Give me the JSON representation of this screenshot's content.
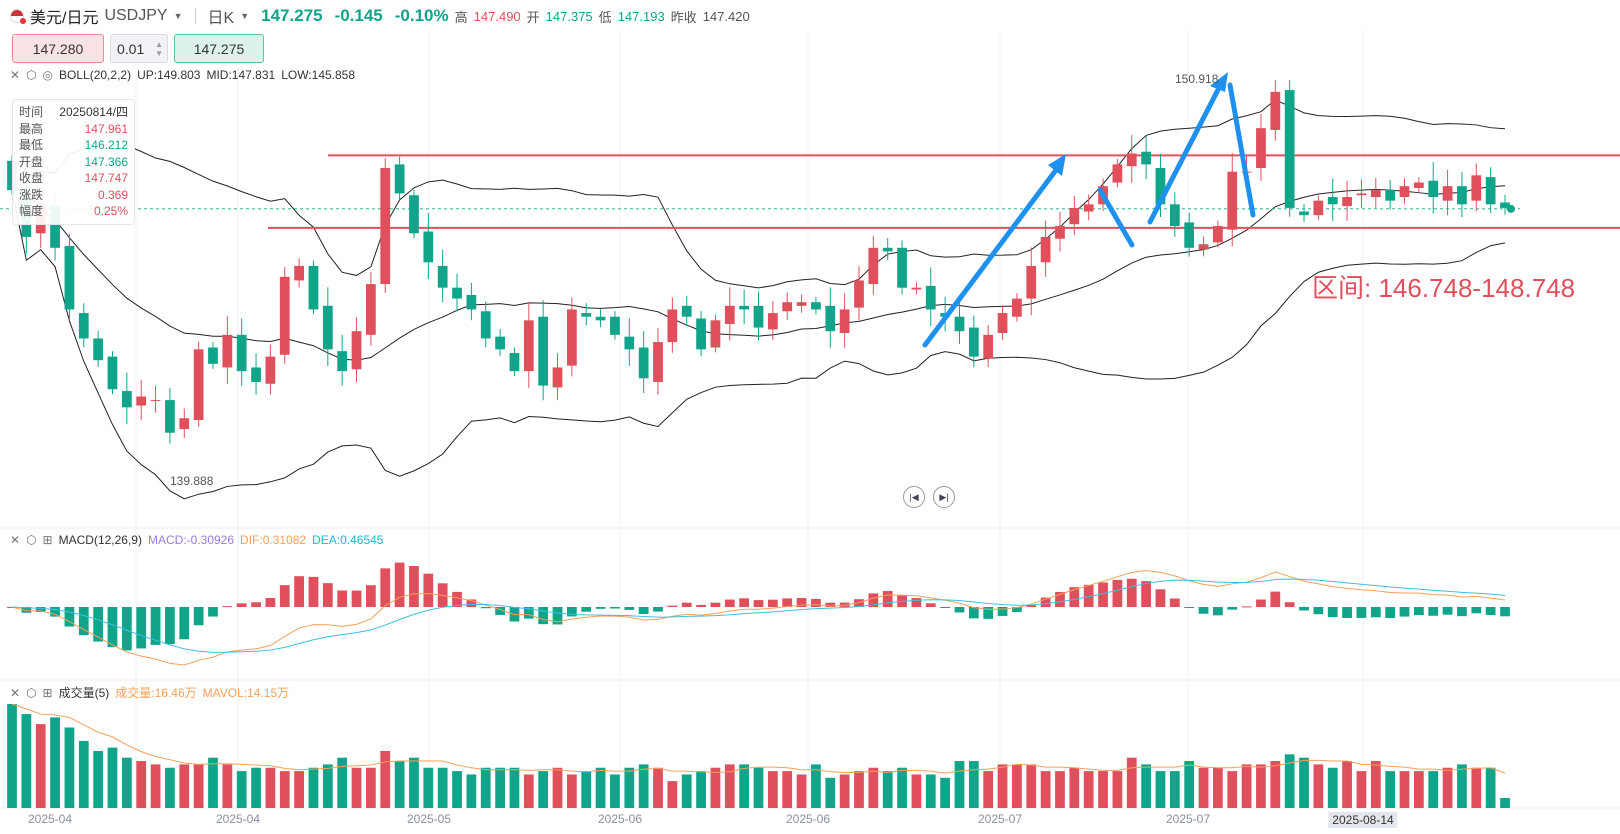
{
  "header": {
    "symbol_cn": "美元/日元",
    "symbol": "USDJPY",
    "period": "日K",
    "price": "147.275",
    "change": "-0.145",
    "change_pct": "-0.10%",
    "high_label": "高",
    "high": "147.490",
    "open_label": "开",
    "open": "147.375",
    "low_label": "低",
    "low": "147.193",
    "prev_label": "昨收",
    "prev": "147.420"
  },
  "trade": {
    "bid": "147.280",
    "qty": "0.01",
    "ask": "147.275"
  },
  "boll": {
    "label": "BOLL(20,2,2)",
    "up": "UP:149.803",
    "mid": "MID:147.831",
    "low": "LOW:145.858"
  },
  "macd": {
    "label": "MACD(12,26,9)",
    "macd": "MACD:-0.30926",
    "dif": "DIF:0.31082",
    "dea": "DEA:0.46545"
  },
  "volume": {
    "label": "成交量(5)",
    "vol": "成交量:16.46万",
    "mavol": "MAVOL:14.15万"
  },
  "tooltip": [
    [
      "时间",
      "20250814/四"
    ],
    [
      "最高",
      "147.961"
    ],
    [
      "最低",
      "146.212"
    ],
    [
      "开盘",
      "147.366"
    ],
    [
      "收盘",
      "147.747"
    ],
    [
      "涨跌",
      "0.369"
    ],
    [
      "幅度",
      "0.25%"
    ]
  ],
  "annotations": {
    "high": "150.918",
    "low": "139.888",
    "range": "区间: 146.748-148.748"
  },
  "colors": {
    "up": "#e0505c",
    "down": "#10a58a",
    "dif": "#f5a05a",
    "dea": "#3cc0e0",
    "arrow": "#1e90f0"
  },
  "chart_data": {
    "type": "candlestick",
    "title": "USDJPY 日K",
    "first_open": 148.6,
    "close": [
      147.79,
      146.5,
      147.4,
      146.2,
      144.5,
      143.7,
      143.1,
      142.3,
      141.8,
      142.1,
      142.0,
      141.1,
      141.5,
      143.4,
      143.0,
      143.8,
      142.8,
      142.5,
      143.2,
      145.4,
      145.7,
      144.5,
      143.4,
      142.8,
      143.9,
      145.2,
      148.4,
      147.7,
      146.6,
      145.8,
      145.1,
      144.8,
      144.5,
      143.7,
      143.4,
      142.8,
      144.2,
      142.4,
      142.9,
      144.5,
      144.3,
      144.2,
      143.8,
      143.4,
      142.6,
      143.6,
      144.5,
      144.3,
      143.4,
      144.2,
      144.6,
      144.5,
      144.0,
      144.4,
      144.7,
      144.7,
      144.5,
      143.9,
      144.5,
      145.3,
      146.2,
      146.1,
      145.1,
      145.1,
      144.5,
      144.3,
      143.9,
      143.2,
      143.8,
      144.4,
      144.8,
      145.7,
      146.5,
      146.8,
      147.3,
      147.4,
      147.9,
      148.5,
      148.8,
      148.5,
      147.4,
      146.8,
      146.2,
      146.3,
      146.8,
      148.3,
      148.3,
      149.5,
      150.5,
      147.3,
      147.1,
      147.5,
      147.4,
      147.6,
      147.7,
      147.8,
      147.5,
      147.9,
      148.0,
      147.6,
      147.9,
      147.4,
      148.2,
      147.4,
      147.3
    ],
    "volume_wan": [
      31,
      28,
      25,
      27,
      24,
      20,
      17,
      18,
      15,
      14,
      13,
      12,
      13,
      13,
      15,
      13,
      11,
      12,
      12,
      11,
      11,
      12,
      13,
      15,
      12,
      12,
      17,
      14,
      15,
      12,
      12,
      11,
      10,
      12,
      12,
      12,
      10,
      11,
      12,
      10,
      11,
      12,
      10,
      12,
      13,
      12,
      8,
      10,
      11,
      12,
      13,
      13,
      12,
      11,
      11,
      10,
      13,
      9,
      10,
      11,
      12,
      11,
      12,
      10,
      10,
      9,
      14,
      14,
      11,
      13,
      13,
      13,
      11,
      11,
      12,
      11,
      11,
      11,
      15,
      13,
      11,
      11,
      14,
      12,
      12,
      11,
      13,
      13,
      14,
      16,
      15,
      13,
      12,
      14,
      11,
      14,
      11,
      11,
      11,
      11,
      12,
      13,
      12,
      12,
      3
    ],
    "high_mark": 150.918,
    "low_mark": 139.888,
    "support": 146.748,
    "resistance": 148.748,
    "last_price": 147.275,
    "ylim": [
      139.3,
      151.6
    ],
    "x_ticks": [
      "2025-04",
      "2025-04",
      "2025-05",
      "2025-06",
      "2025-06",
      "2025-07",
      "2025-07",
      "2025-08-14"
    ]
  }
}
